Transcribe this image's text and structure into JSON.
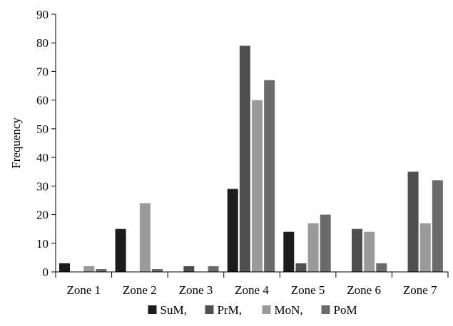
{
  "chart_data": {
    "type": "bar",
    "title": "",
    "xlabel": "",
    "ylabel": "Frequency",
    "ylim": [
      0,
      90
    ],
    "yticks": [
      0,
      10,
      20,
      30,
      40,
      50,
      60,
      70,
      80,
      90
    ],
    "grid": false,
    "legend_position": "bottom",
    "categories": [
      "Zone 1",
      "Zone 2",
      "Zone 3",
      "Zone 4",
      "Zone 5",
      "Zone 6",
      "Zone 7"
    ],
    "series": [
      {
        "name": "SuM,",
        "color": "#1c1c1c",
        "values": [
          3,
          15,
          0,
          29,
          14,
          0,
          0
        ]
      },
      {
        "name": "PrM,",
        "color": "#4f4f4f",
        "values": [
          0,
          0,
          2,
          79,
          3,
          15,
          35
        ]
      },
      {
        "name": "MoN,",
        "color": "#9a9a9a",
        "values": [
          2,
          24,
          0,
          60,
          17,
          14,
          17
        ]
      },
      {
        "name": "PoM",
        "color": "#6b6b6b",
        "values": [
          1,
          1,
          2,
          67,
          20,
          3,
          32
        ]
      }
    ]
  }
}
